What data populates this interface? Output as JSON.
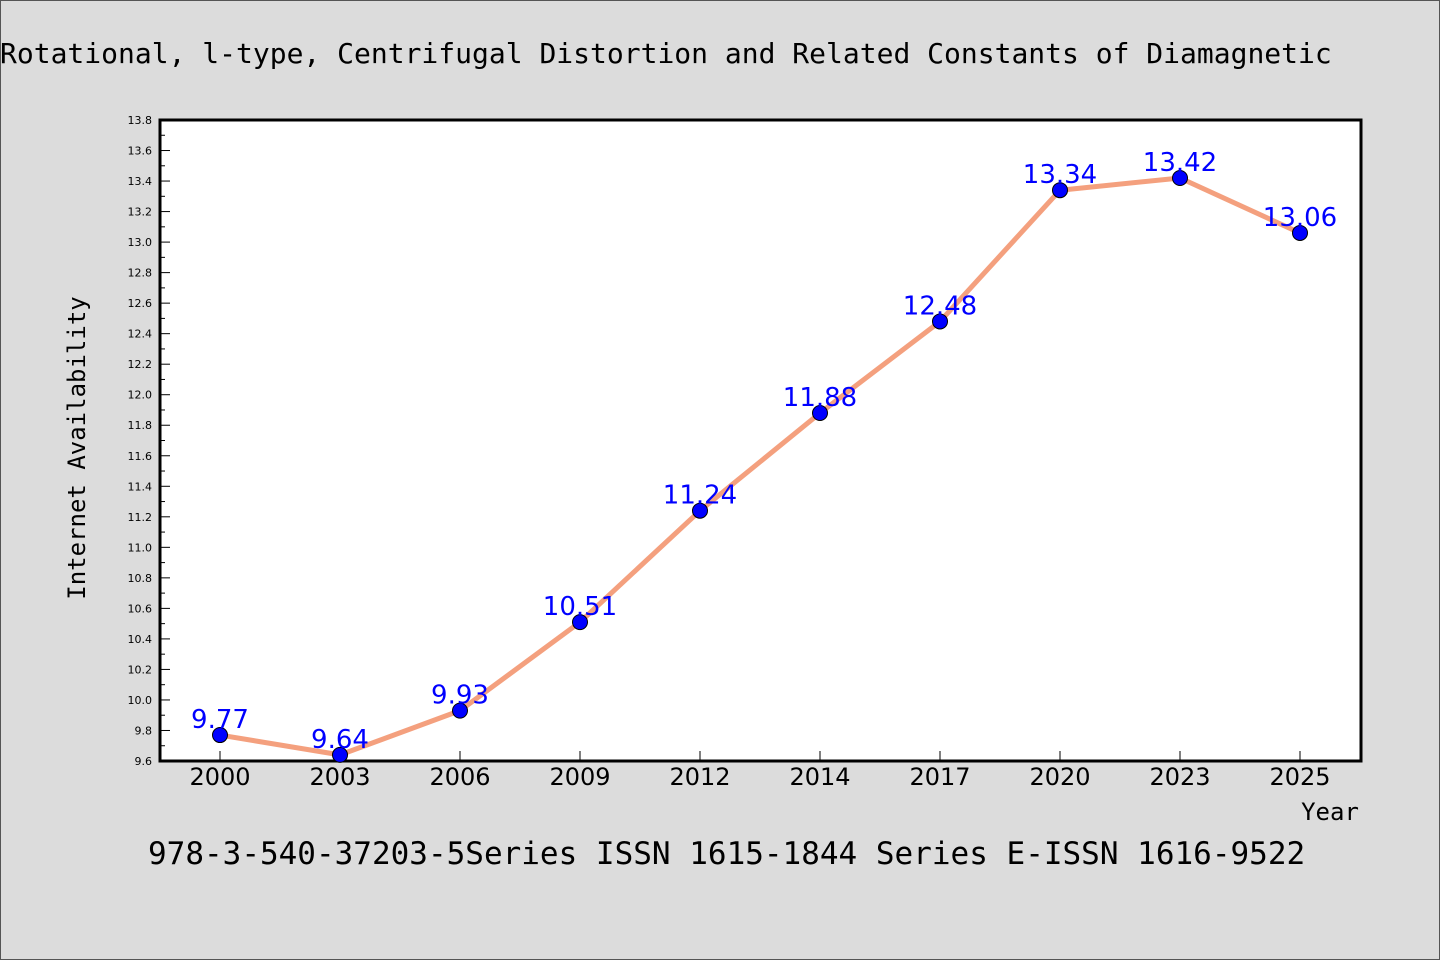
{
  "chart_data": {
    "type": "line",
    "title": "Rotational, l-type, Centrifugal Distortion and Related Constants of Diamagnetic",
    "footer": "978-3-540-37203-5Series ISSN 1615-1844 Series E-ISSN 1616-9522",
    "xlabel": "Year",
    "ylabel": "Internet Availability",
    "categories": [
      "2000",
      "2003",
      "2006",
      "2009",
      "2012",
      "2014",
      "2017",
      "2020",
      "2023",
      "2025"
    ],
    "series": [
      {
        "values": [
          9.77,
          9.64,
          9.93,
          10.51,
          11.24,
          11.88,
          12.48,
          13.34,
          13.42,
          13.06
        ]
      }
    ],
    "data_labels": [
      "9.77",
      "9.64",
      "9.93",
      "10.51",
      "11.24",
      "11.88",
      "12.48",
      "13.34",
      "13.42",
      "13.06"
    ],
    "ylim": [
      9.6,
      13.8
    ],
    "yticks": [
      "9.6",
      "9.8",
      "10.0",
      "10.2",
      "10.4",
      "10.6",
      "10.8",
      "11.0",
      "11.2",
      "11.4",
      "11.6",
      "11.8",
      "12.0",
      "12.2",
      "12.4",
      "12.6",
      "12.8",
      "13.0",
      "13.2",
      "13.4",
      "13.6",
      "13.8"
    ],
    "grid": false,
    "colors": {
      "line": "#f4a07e",
      "marker": "#0000ff",
      "marker_edge": "#000000",
      "data_label": "#0000ff",
      "plot_background": "#ffffff",
      "page_background": "#dcdcdc"
    }
  }
}
